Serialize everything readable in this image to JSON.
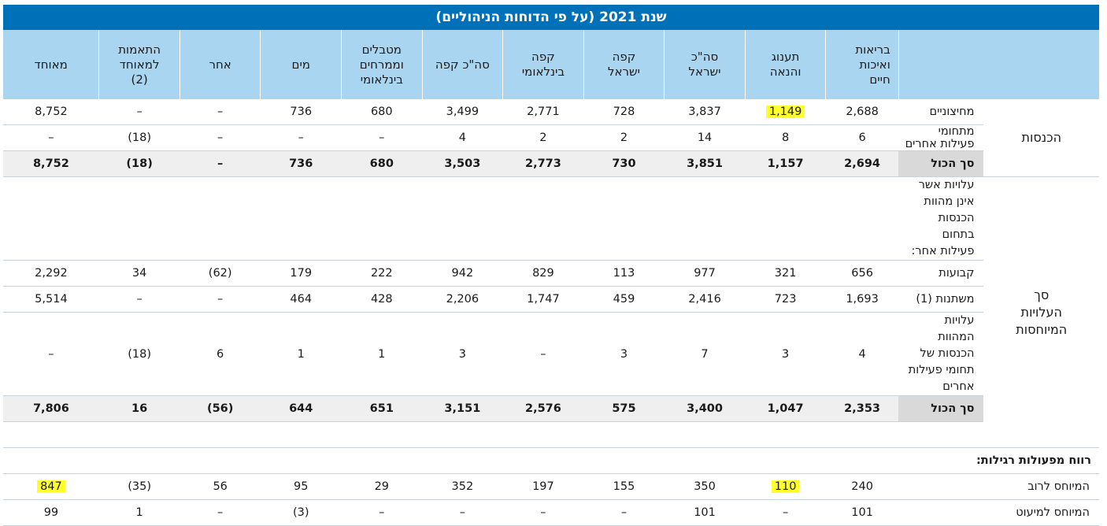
{
  "title": "שנת 2021 (על פי הדוחות הניהוליים)",
  "columns": [
    "בריאות\nואיכות\nחיים",
    "תענוג\nוהנאה",
    "סה\"כ\nישראל",
    "קפה\nישראל",
    "קפה\nבינלאומי",
    "סה\"כ קפה",
    "מטבלים\nוממרחים\nבינלאומי",
    "מים",
    "אחר",
    "התאמות\nלמאוחד\n(2)",
    "מאוחד"
  ],
  "groups": {
    "revenue": "הכנסות",
    "expenses": "סך\nהעלויות\nהמיוחסות"
  },
  "rows": {
    "external": {
      "label": "מחיצוניים",
      "values": [
        "2,688",
        "1,149",
        "3,837",
        "728",
        "2,771",
        "3,499",
        "680",
        "736",
        "–",
        "–",
        "8,752"
      ]
    },
    "other_segments": {
      "label": "מתחומי פעילות אחרים",
      "values": [
        "6",
        "8",
        "14",
        "2",
        "2",
        "4",
        "–",
        "–",
        "–",
        "(18)",
        "–"
      ]
    },
    "revenue_total": {
      "label": "סך הכול",
      "values": [
        "2,694",
        "1,157",
        "3,851",
        "730",
        "2,773",
        "3,503",
        "680",
        "736",
        "–",
        "(18)",
        "8,752"
      ]
    },
    "costs_intro": {
      "label": "עלויות אשר אינן מהוות הכנסות בתחום פעילות אחר:"
    },
    "fixed": {
      "label": "קבועות",
      "values": [
        "656",
        "321",
        "977",
        "113",
        "829",
        "942",
        "222",
        "179",
        "(62)",
        "34",
        "2,292"
      ]
    },
    "variable": {
      "label": "משתנות (1)",
      "values": [
        "1,693",
        "723",
        "2,416",
        "459",
        "1,747",
        "2,206",
        "428",
        "464",
        "–",
        "–",
        "5,514"
      ]
    },
    "other_costs": {
      "label": "עלויות המהוות הכנסות של תחומי פעילות אחרים",
      "values": [
        "4",
        "3",
        "7",
        "3",
        "–",
        "3",
        "1",
        "1",
        "6",
        "(18)",
        "–"
      ]
    },
    "expenses_total": {
      "label": "סך הכול",
      "values": [
        "2,353",
        "1,047",
        "3,400",
        "575",
        "2,576",
        "3,151",
        "651",
        "644",
        "(56)",
        "16",
        "7,806"
      ]
    },
    "profit_head": {
      "label": "רווח מפעולות רגילות:"
    },
    "majority": {
      "label": "המיוחס לרוב",
      "values": [
        "240",
        "110",
        "350",
        "155",
        "197",
        "352",
        "29",
        "95",
        "56",
        "(35)",
        "847"
      ]
    },
    "minority": {
      "label": "המיוחס למיעוט",
      "values": [
        "101",
        "–",
        "101",
        "–",
        "–",
        "–",
        "–",
        "(3)",
        "–",
        "1",
        "99"
      ]
    }
  },
  "highlights": {
    "color": "#ffff2e"
  }
}
